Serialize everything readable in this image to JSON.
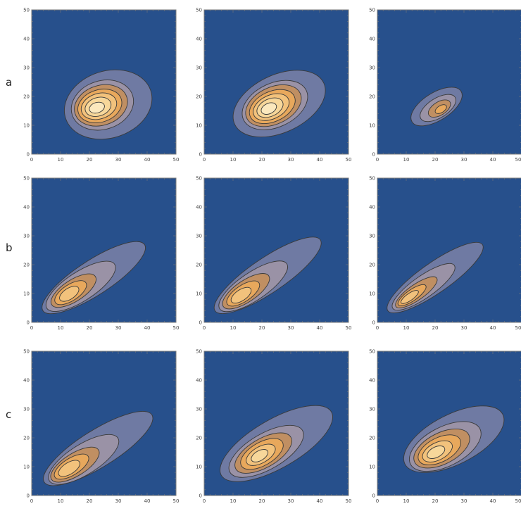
{
  "rows": [
    {
      "label": "a"
    },
    {
      "label": "b"
    },
    {
      "label": "c"
    }
  ],
  "colors": {
    "background": "#27508c",
    "frame": "#7a7a7a",
    "contour_line": "#3a3a3a",
    "levels": [
      "#6f7aa3",
      "#9a92a6",
      "#c08f62",
      "#e8a85c",
      "#f2c27c",
      "#f7d79a",
      "#fbe8bd",
      "#fff7dc"
    ]
  },
  "chart_data": [
    {
      "type": "contour",
      "row": "a",
      "col": 1,
      "xlim": [
        0,
        50
      ],
      "ylim": [
        0,
        50
      ],
      "x_ticks": [
        0,
        10,
        20,
        30,
        40,
        50
      ],
      "y_ticks": [
        0,
        10,
        20,
        30,
        40,
        50
      ],
      "levels": [
        {
          "cx": 26.5,
          "cy": 17.2,
          "rx": 15.5,
          "ry": 11.6,
          "angle": 18
        },
        {
          "cx": 24.5,
          "cy": 17.0,
          "rx": 11.0,
          "ry": 8.4,
          "angle": 18
        },
        {
          "cx": 24.0,
          "cy": 16.9,
          "rx": 9.4,
          "ry": 6.9,
          "angle": 18
        },
        {
          "cx": 23.6,
          "cy": 16.7,
          "rx": 7.8,
          "ry": 5.6,
          "angle": 18
        },
        {
          "cx": 23.3,
          "cy": 16.6,
          "rx": 6.3,
          "ry": 4.4,
          "angle": 18
        },
        {
          "cx": 23.0,
          "cy": 16.4,
          "rx": 4.6,
          "ry": 3.2,
          "angle": 18
        },
        {
          "cx": 22.6,
          "cy": 16.1,
          "rx": 2.7,
          "ry": 1.8,
          "angle": 18
        }
      ]
    },
    {
      "type": "contour",
      "row": "a",
      "col": 2,
      "xlim": [
        0,
        50
      ],
      "ylim": [
        0,
        50
      ],
      "x_ticks": [
        0,
        10,
        20,
        30,
        40,
        50
      ],
      "y_ticks": [
        0,
        10,
        20,
        30,
        40,
        50
      ],
      "levels": [
        {
          "cx": 26.0,
          "cy": 17.5,
          "rx": 17.0,
          "ry": 10.0,
          "angle": 25
        },
        {
          "cx": 24.5,
          "cy": 17.0,
          "rx": 12.0,
          "ry": 7.6,
          "angle": 25
        },
        {
          "cx": 24.0,
          "cy": 16.8,
          "rx": 10.2,
          "ry": 6.4,
          "angle": 25
        },
        {
          "cx": 23.6,
          "cy": 16.5,
          "rx": 8.4,
          "ry": 5.2,
          "angle": 25
        },
        {
          "cx": 23.2,
          "cy": 16.3,
          "rx": 6.6,
          "ry": 4.1,
          "angle": 25
        },
        {
          "cx": 22.8,
          "cy": 16.1,
          "rx": 4.8,
          "ry": 3.0,
          "angle": 25
        },
        {
          "cx": 22.4,
          "cy": 15.8,
          "rx": 2.8,
          "ry": 1.8,
          "angle": 25
        }
      ]
    },
    {
      "type": "contour",
      "row": "a",
      "col": 3,
      "xlim": [
        0,
        50
      ],
      "ylim": [
        0,
        50
      ],
      "x_ticks": [
        0,
        10,
        20,
        30,
        40,
        50
      ],
      "y_ticks": [
        0,
        10,
        20,
        30,
        40,
        50
      ],
      "levels": [
        {
          "cx": 20.5,
          "cy": 16.5,
          "rx": 10.0,
          "ry": 4.8,
          "angle": 32
        },
        {
          "cx": 21.0,
          "cy": 16.0,
          "rx": 7.0,
          "ry": 3.4,
          "angle": 32
        },
        {
          "cx": 21.5,
          "cy": 15.8,
          "rx": 4.3,
          "ry": 2.3,
          "angle": 32
        },
        {
          "cx": 22.0,
          "cy": 15.6,
          "rx": 2.2,
          "ry": 1.2,
          "angle": 32
        }
      ]
    },
    {
      "type": "contour",
      "row": "b",
      "col": 1,
      "xlim": [
        0,
        50
      ],
      "ylim": [
        0,
        50
      ],
      "x_ticks": [
        0,
        10,
        20,
        30,
        40,
        50
      ],
      "y_ticks": [
        0,
        10,
        20,
        30,
        40,
        50
      ],
      "levels": [
        {
          "cx": 21.5,
          "cy": 15.5,
          "rx": 21.0,
          "ry": 6.0,
          "angle": 33
        },
        {
          "cx": 17.0,
          "cy": 12.5,
          "rx": 14.0,
          "ry": 5.0,
          "angle": 33
        },
        {
          "cx": 14.5,
          "cy": 11.0,
          "rx": 9.0,
          "ry": 3.7,
          "angle": 33
        },
        {
          "cx": 13.5,
          "cy": 10.3,
          "rx": 6.3,
          "ry": 2.8,
          "angle": 33
        },
        {
          "cx": 13.0,
          "cy": 9.9,
          "rx": 3.8,
          "ry": 1.9,
          "angle": 33
        }
      ]
    },
    {
      "type": "contour",
      "row": "b",
      "col": 2,
      "xlim": [
        0,
        50
      ],
      "ylim": [
        0,
        50
      ],
      "x_ticks": [
        0,
        10,
        20,
        30,
        40,
        50
      ],
      "y_ticks": [
        0,
        10,
        20,
        30,
        40,
        50
      ],
      "levels": [
        {
          "cx": 22.0,
          "cy": 16.3,
          "rx": 22.0,
          "ry": 6.0,
          "angle": 34
        },
        {
          "cx": 17.0,
          "cy": 12.5,
          "rx": 14.0,
          "ry": 4.8,
          "angle": 34
        },
        {
          "cx": 14.5,
          "cy": 10.8,
          "rx": 9.5,
          "ry": 3.7,
          "angle": 34
        },
        {
          "cx": 13.5,
          "cy": 10.0,
          "rx": 6.6,
          "ry": 2.8,
          "angle": 34
        },
        {
          "cx": 12.8,
          "cy": 9.4,
          "rx": 4.0,
          "ry": 1.9,
          "angle": 34
        }
      ]
    },
    {
      "type": "contour",
      "row": "b",
      "col": 3,
      "xlim": [
        0,
        50
      ],
      "ylim": [
        0,
        50
      ],
      "x_ticks": [
        0,
        10,
        20,
        30,
        40,
        50
      ],
      "y_ticks": [
        0,
        10,
        20,
        30,
        40,
        50
      ],
      "levels": [
        {
          "cx": 20.0,
          "cy": 15.5,
          "rx": 20.0,
          "ry": 5.2,
          "angle": 35
        },
        {
          "cx": 16.0,
          "cy": 12.3,
          "rx": 13.0,
          "ry": 3.8,
          "angle": 35
        },
        {
          "cx": 13.5,
          "cy": 10.4,
          "rx": 8.6,
          "ry": 2.7,
          "angle": 35
        },
        {
          "cx": 12.0,
          "cy": 9.4,
          "rx": 5.8,
          "ry": 1.9,
          "angle": 35
        },
        {
          "cx": 11.2,
          "cy": 8.8,
          "rx": 3.6,
          "ry": 1.2,
          "angle": 35
        }
      ]
    },
    {
      "type": "contour",
      "row": "c",
      "col": 1,
      "xlim": [
        0,
        50
      ],
      "ylim": [
        0,
        50
      ],
      "x_ticks": [
        0,
        10,
        20,
        30,
        40,
        50
      ],
      "y_ticks": [
        0,
        10,
        20,
        30,
        40,
        50
      ],
      "levels": [
        {
          "cx": 23.0,
          "cy": 16.3,
          "rx": 22.0,
          "ry": 6.4,
          "angle": 32
        },
        {
          "cx": 18.0,
          "cy": 12.5,
          "rx": 14.0,
          "ry": 5.2,
          "angle": 32
        },
        {
          "cx": 15.0,
          "cy": 10.7,
          "rx": 9.6,
          "ry": 3.9,
          "angle": 32
        },
        {
          "cx": 13.8,
          "cy": 10.0,
          "rx": 6.8,
          "ry": 2.9,
          "angle": 32
        },
        {
          "cx": 13.0,
          "cy": 9.4,
          "rx": 4.2,
          "ry": 2.0,
          "angle": 32
        }
      ]
    },
    {
      "type": "contour",
      "row": "c",
      "col": 2,
      "xlim": [
        0,
        50
      ],
      "ylim": [
        0,
        50
      ],
      "x_ticks": [
        0,
        10,
        20,
        30,
        40,
        50
      ],
      "y_ticks": [
        0,
        10,
        20,
        30,
        40,
        50
      ],
      "levels": [
        {
          "cx": 25.0,
          "cy": 18.0,
          "rx": 22.0,
          "ry": 8.4,
          "angle": 30
        },
        {
          "cx": 21.5,
          "cy": 15.3,
          "rx": 14.5,
          "ry": 6.2,
          "angle": 30
        },
        {
          "cx": 20.5,
          "cy": 14.7,
          "rx": 11.0,
          "ry": 5.0,
          "angle": 30
        },
        {
          "cx": 20.0,
          "cy": 14.4,
          "rx": 8.2,
          "ry": 4.0,
          "angle": 30
        },
        {
          "cx": 19.6,
          "cy": 14.1,
          "rx": 5.6,
          "ry": 2.8,
          "angle": 30
        },
        {
          "cx": 19.2,
          "cy": 13.8,
          "rx": 3.2,
          "ry": 1.7,
          "angle": 30
        }
      ]
    },
    {
      "type": "contour",
      "row": "c",
      "col": 3,
      "xlim": [
        0,
        50
      ],
      "ylim": [
        0,
        50
      ],
      "x_ticks": [
        0,
        10,
        20,
        30,
        40,
        50
      ],
      "y_ticks": [
        0,
        10,
        20,
        30,
        40,
        50
      ],
      "levels": [
        {
          "cx": 26.5,
          "cy": 19.5,
          "rx": 19.0,
          "ry": 8.6,
          "angle": 27
        },
        {
          "cx": 23.5,
          "cy": 17.0,
          "rx": 13.5,
          "ry": 6.8,
          "angle": 27
        },
        {
          "cx": 22.3,
          "cy": 16.3,
          "rx": 10.5,
          "ry": 5.4,
          "angle": 27
        },
        {
          "cx": 21.5,
          "cy": 15.8,
          "rx": 8.0,
          "ry": 4.2,
          "angle": 27
        },
        {
          "cx": 20.8,
          "cy": 15.3,
          "rx": 5.6,
          "ry": 3.0,
          "angle": 27
        },
        {
          "cx": 20.3,
          "cy": 15.0,
          "rx": 3.3,
          "ry": 1.8,
          "angle": 27
        }
      ]
    }
  ]
}
